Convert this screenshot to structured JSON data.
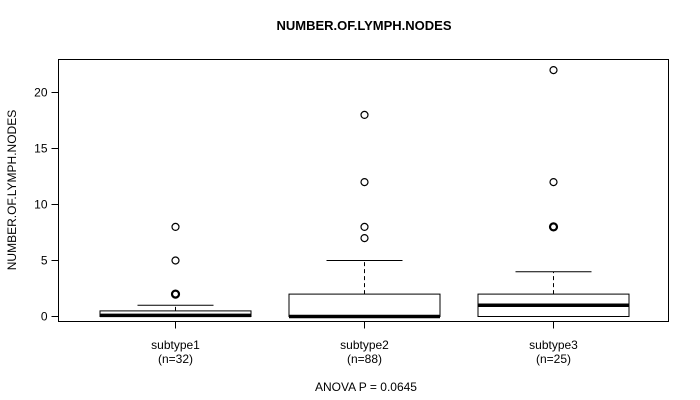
{
  "title": "NUMBER.OF.LYMPH.NODES",
  "annotation": "ANOVA P = 0.0645",
  "colors": {
    "stroke": "#000000",
    "box_fill": "#ffffff",
    "background": "#ffffff"
  },
  "chart_data": {
    "type": "boxplot",
    "title": "NUMBER.OF.LYMPH.NODES",
    "ylabel": "NUMBER.OF.LYMPH.NODES",
    "xlabel": "",
    "annotation": "ANOVA P = 0.0645",
    "ylim": [
      -0.5,
      23
    ],
    "yticks": [
      0,
      5,
      10,
      15,
      20
    ],
    "grid": false,
    "legend": "none",
    "groups": [
      {
        "label": "subtype1",
        "sublabel": "(n=32)",
        "n": 32,
        "q1": 0,
        "median": 0.1,
        "q3": 0.5,
        "whisker_low": 0,
        "whisker_high": 1,
        "outliers": [
          2,
          5,
          8
        ],
        "emphasized_outliers": [
          2
        ]
      },
      {
        "label": "subtype2",
        "sublabel": "(n=88)",
        "n": 88,
        "q1": 0,
        "median": 0,
        "q3": 2,
        "whisker_low": 0,
        "whisker_high": 5,
        "outliers": [
          7,
          8,
          12,
          18
        ],
        "emphasized_outliers": []
      },
      {
        "label": "subtype3",
        "sublabel": "(n=25)",
        "n": 25,
        "q1": 0,
        "median": 1,
        "q3": 2,
        "whisker_low": 0,
        "whisker_high": 4,
        "outliers": [
          8,
          12,
          22
        ],
        "emphasized_outliers": [
          8
        ]
      }
    ]
  }
}
